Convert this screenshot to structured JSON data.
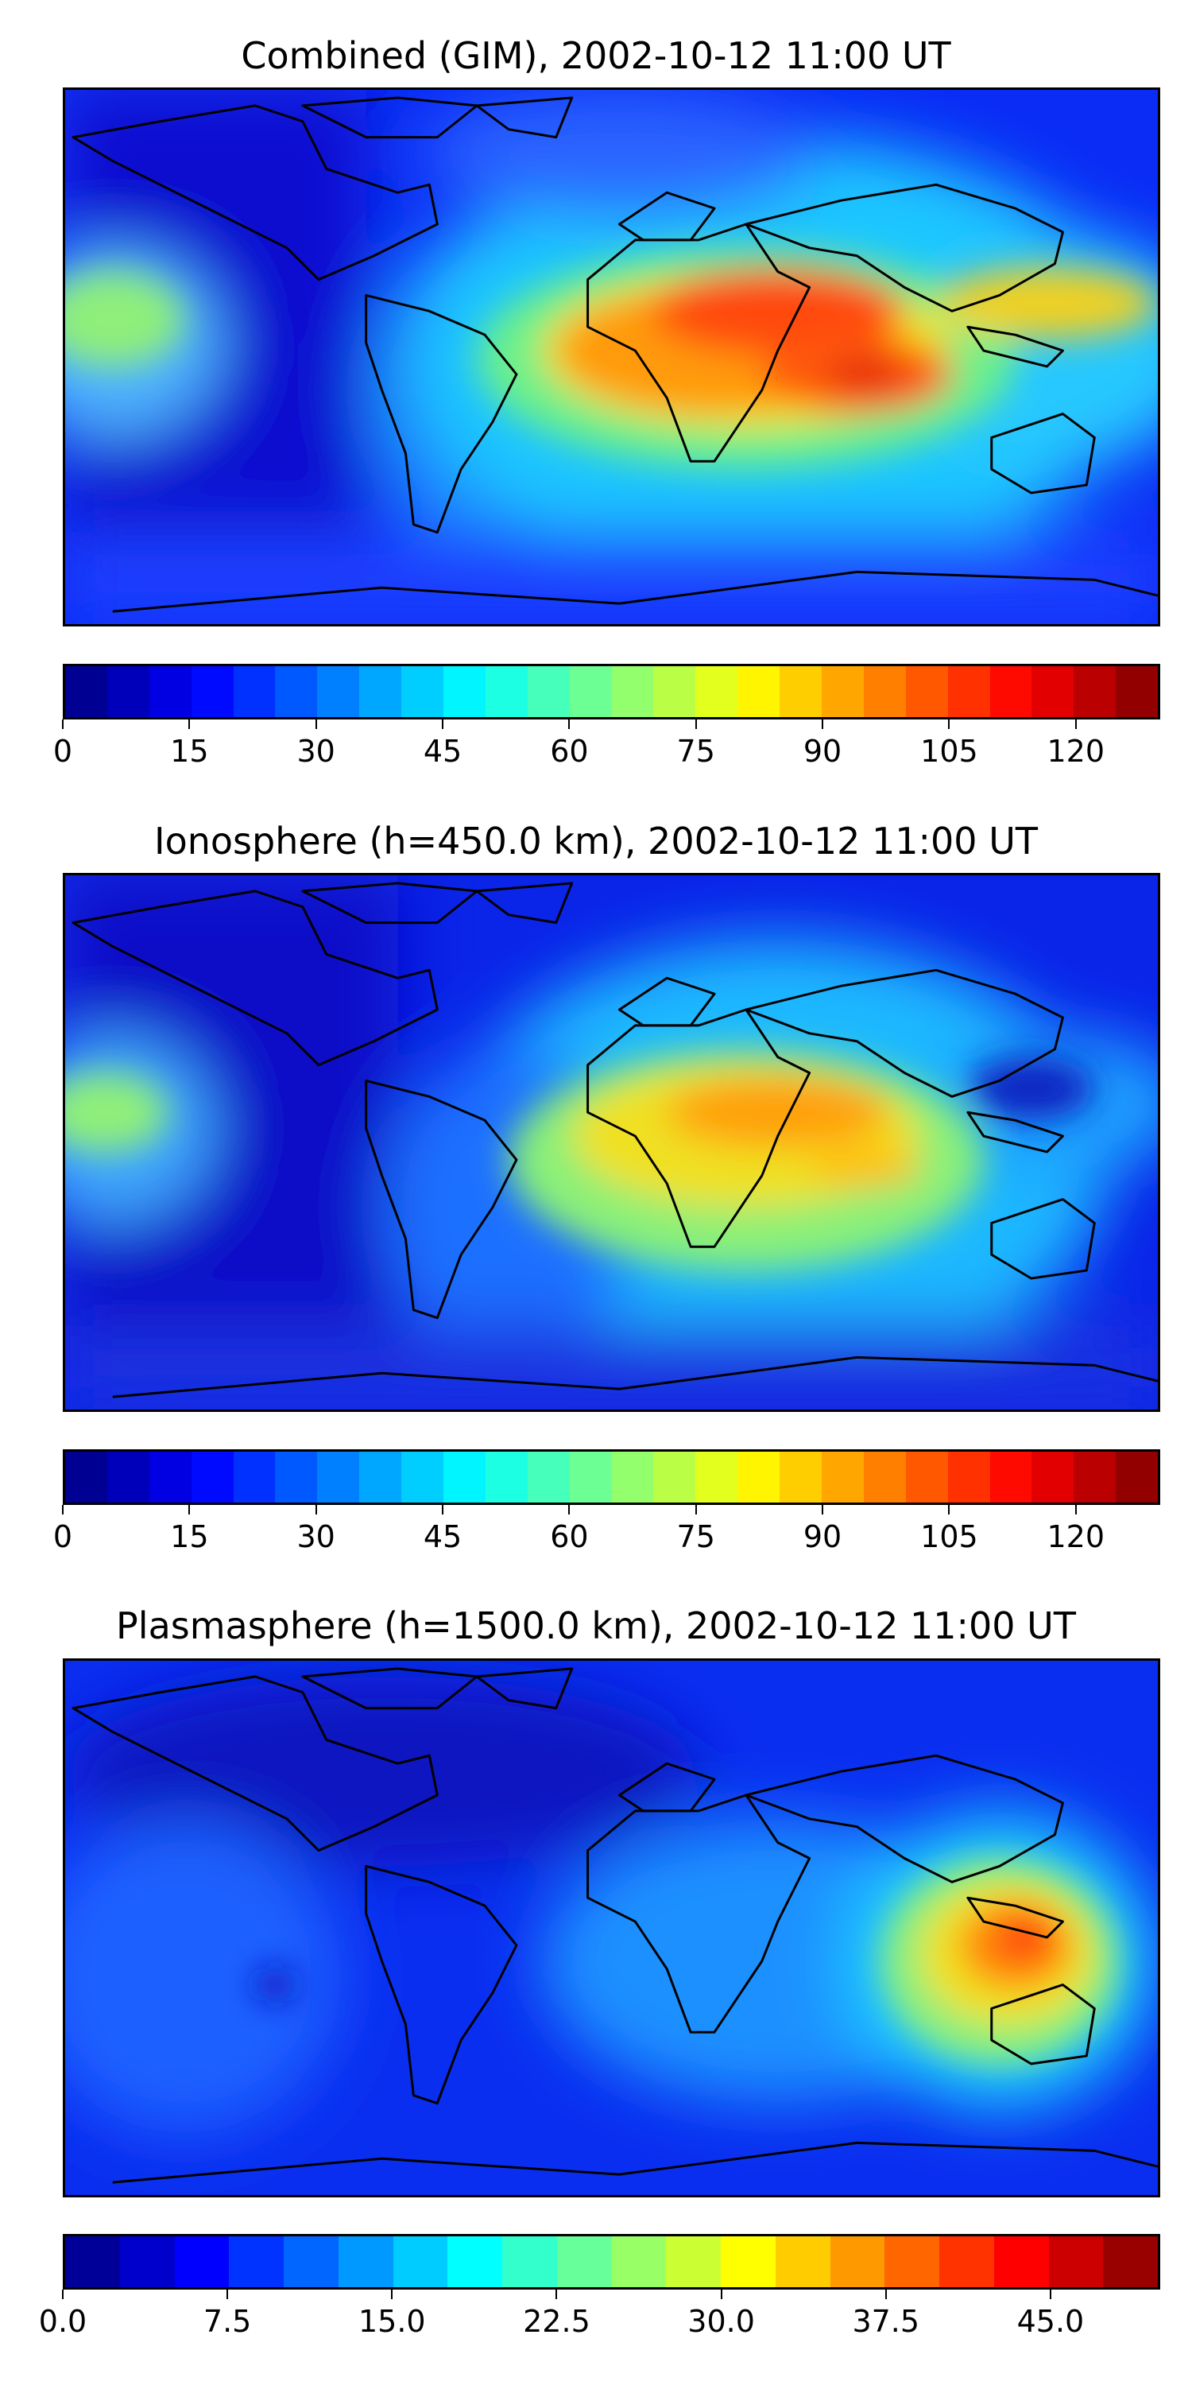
{
  "panels": [
    {
      "id": "combined",
      "title": "Combined (GIM), 2002-10-12 11:00 UT",
      "colorbar": {
        "min": 0,
        "max": 130,
        "levels": 26,
        "tick_values": [
          0,
          15,
          30,
          45,
          60,
          75,
          90,
          105,
          120
        ],
        "tick_labels": [
          "0",
          "15",
          "30",
          "45",
          "60",
          "75",
          "90",
          "105",
          "120"
        ]
      }
    },
    {
      "id": "ionosphere",
      "title": "Ionosphere  (h=450.0 km), 2002-10-12 11:00 UT",
      "colorbar": {
        "min": 0,
        "max": 130,
        "levels": 26,
        "tick_values": [
          0,
          15,
          30,
          45,
          60,
          75,
          90,
          105,
          120
        ],
        "tick_labels": [
          "0",
          "15",
          "30",
          "45",
          "60",
          "75",
          "90",
          "105",
          "120"
        ]
      }
    },
    {
      "id": "plasmasphere",
      "title": "Plasmasphere (h=1500.0 km), 2002-10-12 11:00 UT",
      "colorbar": {
        "min": 0,
        "max": 50,
        "levels": 20,
        "tick_values": [
          0,
          7.5,
          15,
          22.5,
          30,
          37.5,
          45
        ],
        "tick_labels": [
          "0.0",
          "7.5",
          "15.0",
          "22.5",
          "30.0",
          "37.5",
          "45.0"
        ]
      }
    }
  ],
  "colormap": "jet"
}
